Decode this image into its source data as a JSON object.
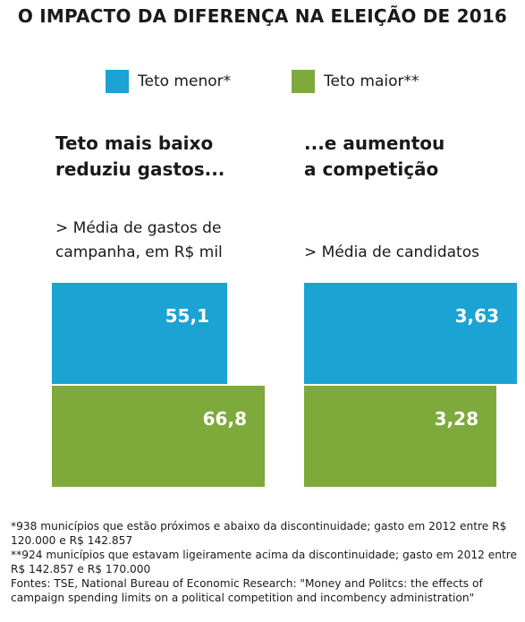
{
  "title": "O IMPACTO DA DIFERENÇA NA ELEIÇÃO DE 2016",
  "legend": [
    {
      "label": "Teto menor*",
      "color": "#1ba3d3"
    },
    {
      "label": "Teto maior**",
      "color": "#7eaa3c"
    }
  ],
  "panels": [
    {
      "heading": "Teto mais baixo\nreduziu gastos...",
      "subtitle": "> Média de gastos de\ncampanha, em R$ mil"
    },
    {
      "heading": "...e aumentou\na competição",
      "subtitle": "> Média de candidatos"
    }
  ],
  "chart_data": [
    {
      "type": "bar",
      "orientation": "horizontal",
      "title": "Teto mais baixo reduziu gastos...",
      "ylabel": "> Média de gastos de campanha, em R$ mil",
      "series": [
        {
          "name": "Teto menor*",
          "value": 55.1,
          "label": "55,1",
          "color": "#1ba3d3"
        },
        {
          "name": "Teto maior**",
          "value": 66.8,
          "label": "66,8",
          "color": "#7eaa3c"
        }
      ],
      "xlim": [
        0,
        66.8
      ]
    },
    {
      "type": "bar",
      "orientation": "horizontal",
      "title": "...e aumentou a competição",
      "ylabel": "> Média de candidatos",
      "series": [
        {
          "name": "Teto menor*",
          "value": 3.63,
          "label": "3,63",
          "color": "#1ba3d3"
        },
        {
          "name": "Teto maior**",
          "value": 3.28,
          "label": "3,28",
          "color": "#7eaa3c"
        }
      ],
      "xlim": [
        0,
        3.63
      ]
    }
  ],
  "notes": {
    "note1": "*938 municípios que estão próximos e abaixo da discontinuidade; gasto em 2012 entre R$ 120.000 e R$ 142.857",
    "note2": "**924 municípios que estavam ligeiramente acima da discontinuidade; gasto em 2012 entre R$ 142.857 e R$ 170.000",
    "sources": "Fontes: TSE, National Bureau of Economic Research: \"Money and Politcs: the effects of campaign spending limits on a political competition and incombency administration\""
  }
}
